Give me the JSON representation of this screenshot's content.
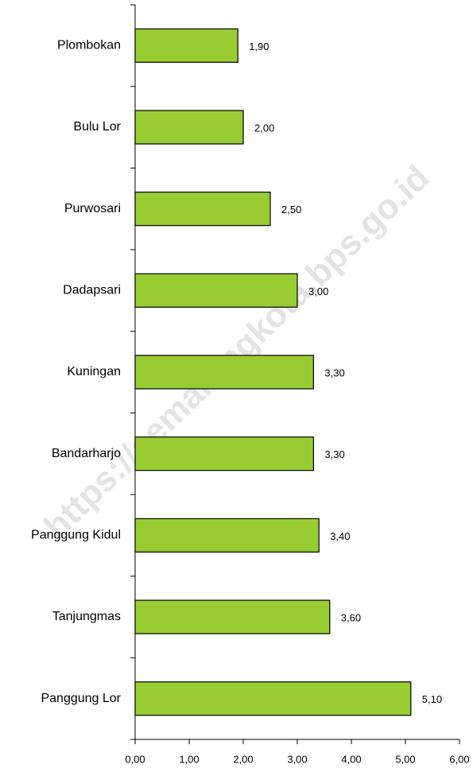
{
  "chart_data": {
    "type": "hbar",
    "categories": [
      "Plombokan",
      "Bulu Lor",
      "Purwosari",
      "Dadapsari",
      "Kuningan",
      "Bandarharjo",
      "Panggung Kidul",
      "Tanjungmas",
      "Panggung Lor"
    ],
    "values": [
      1.9,
      2.0,
      2.5,
      3.0,
      3.3,
      3.3,
      3.4,
      3.6,
      5.1
    ],
    "value_labels": [
      "1,90",
      "2,00",
      "2,50",
      "3,00",
      "3,30",
      "3,30",
      "3,40",
      "3,60",
      "5,10"
    ],
    "color": "#99cc33",
    "xlim": [
      0,
      6
    ],
    "xticks": [
      {
        "value": 0,
        "label": "0,00"
      },
      {
        "value": 1,
        "label": "1,00"
      },
      {
        "value": 2,
        "label": "2,00"
      },
      {
        "value": 3,
        "label": "3,00"
      },
      {
        "value": 4,
        "label": "4,00"
      },
      {
        "value": 5,
        "label": "5,00"
      },
      {
        "value": 6,
        "label": "6,00"
      }
    ],
    "watermark": "https://semarangkota.bps.go.id"
  }
}
